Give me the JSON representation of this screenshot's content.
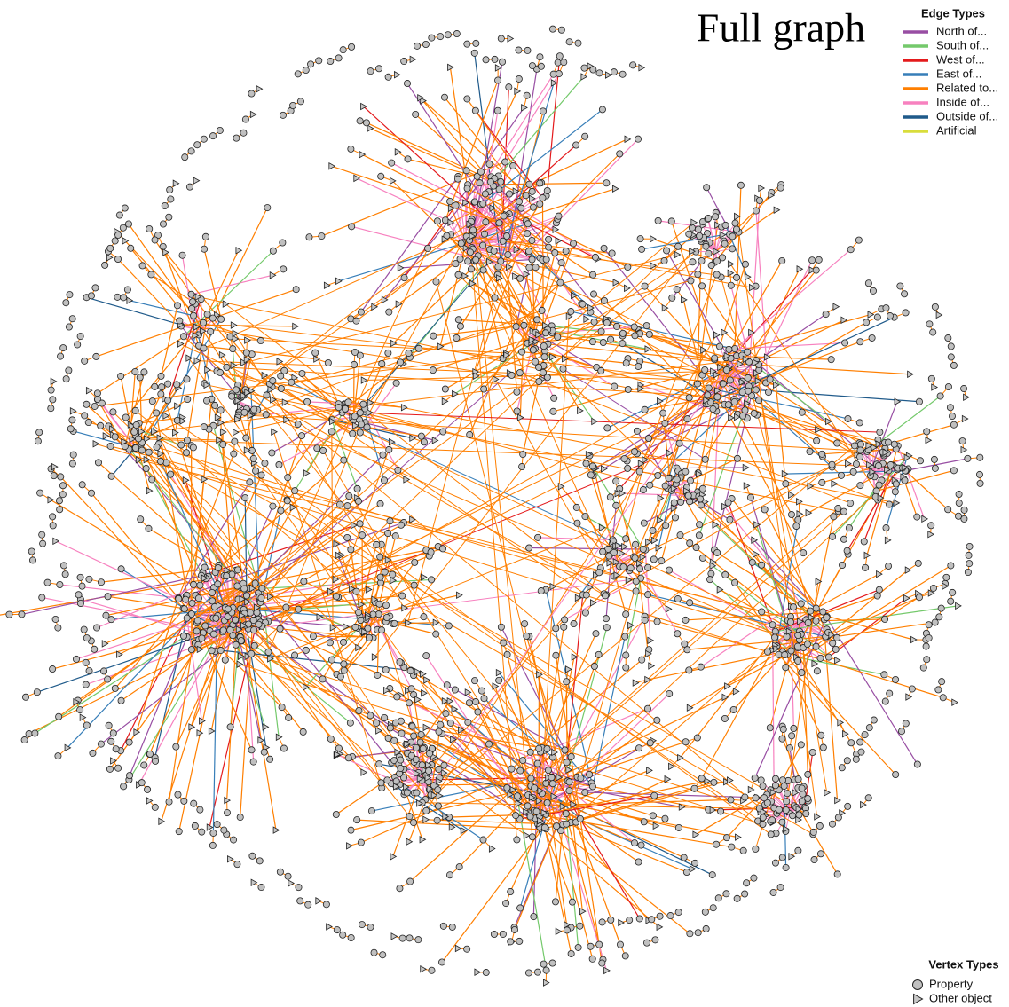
{
  "title": "Full graph",
  "edge_legend": {
    "title": "Edge Types",
    "items": [
      {
        "label": "North of...",
        "color": "#984ea3"
      },
      {
        "label": "South of...",
        "color": "#74c96b"
      },
      {
        "label": "West of...",
        "color": "#e41a1c"
      },
      {
        "label": "East of...",
        "color": "#377eb8"
      },
      {
        "label": "Related to...",
        "color": "#ff7f00"
      },
      {
        "label": "Inside of...",
        "color": "#f781bf"
      },
      {
        "label": "Outside of...",
        "color": "#1f5a8a"
      },
      {
        "label": "Artificial",
        "color": "#d9dd3c"
      }
    ]
  },
  "vertex_legend": {
    "title": "Vertex Types",
    "items": [
      {
        "label": "Property",
        "marker": "circle"
      },
      {
        "label": "Other object",
        "marker": "triangle"
      }
    ]
  }
}
